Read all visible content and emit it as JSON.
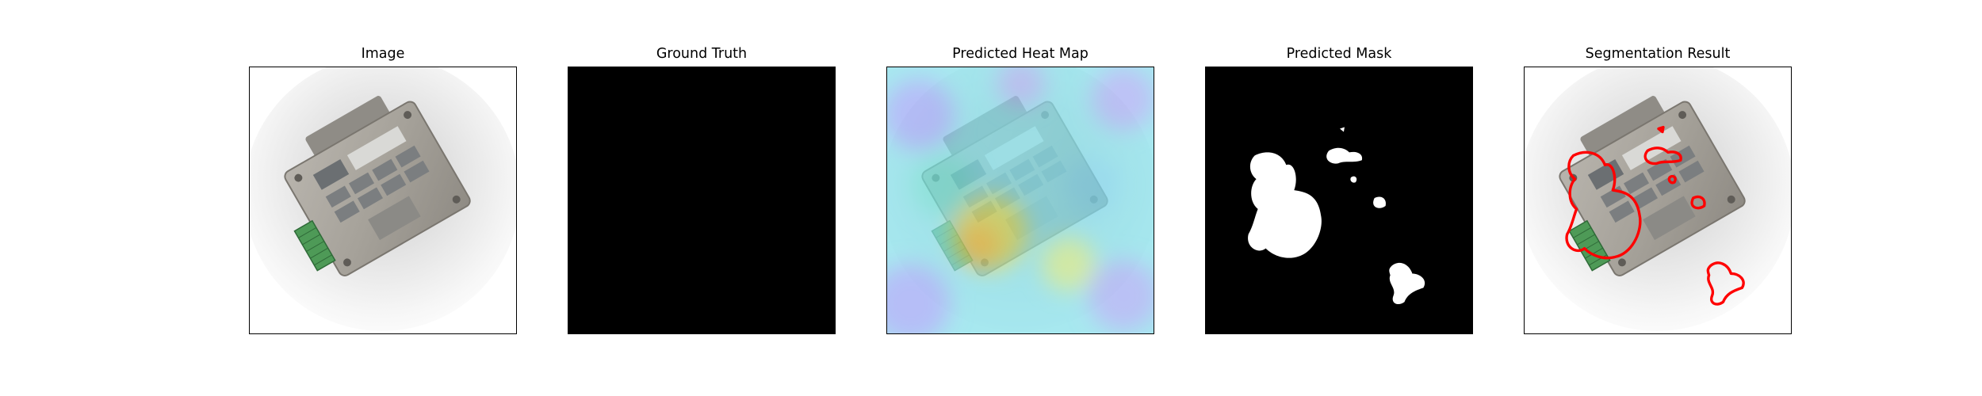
{
  "panels": [
    {
      "title": "Image"
    },
    {
      "title": "Ground Truth"
    },
    {
      "title": "Predicted Heat Map"
    },
    {
      "title": "Predicted Mask"
    },
    {
      "title": "Segmentation Result"
    }
  ],
  "colors": {
    "frame": "#000000",
    "contour": "#ff0000",
    "mask_background": "#000000",
    "mask_foreground": "#ffffff",
    "heat_low": "#8fa0f5",
    "heat_mid": "#7ae6e6",
    "heat_high": "#e8d84a"
  },
  "icons": [
    "device-photo",
    "pcb-terminal"
  ]
}
